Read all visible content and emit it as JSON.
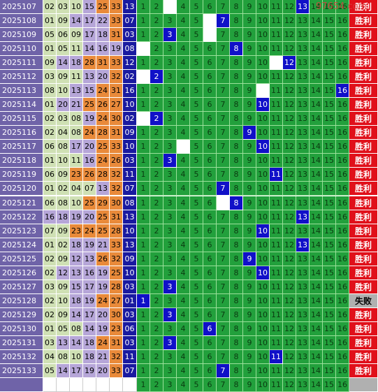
{
  "watermark": "97654.com",
  "grid_numbers": [
    "1",
    "2",
    "3",
    "4",
    "5",
    "6",
    "7",
    "8",
    "9",
    "10",
    "11",
    "12",
    "13",
    "14",
    "15",
    "16"
  ],
  "rows": [
    {
      "issue": "2025107",
      "reds": [
        "02",
        "03",
        "10",
        "15",
        "25",
        "33"
      ],
      "blue": "13",
      "kill": 3,
      "result": "胜利"
    },
    {
      "issue": "2025108",
      "reds": [
        "01",
        "09",
        "14",
        "17",
        "22",
        "33"
      ],
      "blue": "07",
      "kill": 6,
      "result": "胜利"
    },
    {
      "issue": "2025109",
      "reds": [
        "05",
        "06",
        "09",
        "17",
        "18",
        "31"
      ],
      "blue": "03",
      "kill": 6,
      "result": "胜利"
    },
    {
      "issue": "2025110",
      "reds": [
        "01",
        "05",
        "11",
        "14",
        "16",
        "19"
      ],
      "blue": "08",
      "kill": 1,
      "result": "胜利"
    },
    {
      "issue": "2025111",
      "reds": [
        "09",
        "14",
        "18",
        "28",
        "31",
        "33"
      ],
      "blue": "12",
      "kill": 11,
      "result": "胜利"
    },
    {
      "issue": "2025112",
      "reds": [
        "03",
        "09",
        "11",
        "13",
        "20",
        "32"
      ],
      "blue": "02",
      "kill": 1,
      "result": "胜利"
    },
    {
      "issue": "2025113",
      "reds": [
        "08",
        "10",
        "13",
        "15",
        "24",
        "31"
      ],
      "blue": "16",
      "kill": 10,
      "result": "胜利"
    },
    {
      "issue": "2025114",
      "reds": [
        "01",
        "20",
        "21",
        "25",
        "26",
        "27"
      ],
      "blue": "10",
      "kill": null,
      "result": "胜利"
    },
    {
      "issue": "2025115",
      "reds": [
        "02",
        "03",
        "08",
        "19",
        "24",
        "30"
      ],
      "blue": "02",
      "kill": 1,
      "result": "胜利"
    },
    {
      "issue": "2025116",
      "reds": [
        "02",
        "04",
        "08",
        "24",
        "28",
        "31"
      ],
      "blue": "09",
      "kill": null,
      "result": "胜利"
    },
    {
      "issue": "2025117",
      "reds": [
        "06",
        "08",
        "17",
        "20",
        "25",
        "33"
      ],
      "blue": "10",
      "kill": 4,
      "result": "胜利"
    },
    {
      "issue": "2025118",
      "reds": [
        "01",
        "10",
        "11",
        "16",
        "24",
        "26"
      ],
      "blue": "03",
      "kill": null,
      "result": "胜利"
    },
    {
      "issue": "2025119",
      "reds": [
        "06",
        "09",
        "23",
        "26",
        "28",
        "32"
      ],
      "blue": "11",
      "kill": null,
      "result": "胜利"
    },
    {
      "issue": "2025120",
      "reds": [
        "01",
        "02",
        "04",
        "07",
        "13",
        "32"
      ],
      "blue": "07",
      "kill": null,
      "result": "胜利"
    },
    {
      "issue": "2025121",
      "reds": [
        "06",
        "08",
        "10",
        "25",
        "29",
        "30"
      ],
      "blue": "08",
      "kill": 7,
      "result": "胜利"
    },
    {
      "issue": "2025122",
      "reds": [
        "16",
        "18",
        "19",
        "20",
        "25",
        "31"
      ],
      "blue": "13",
      "kill": null,
      "result": "胜利"
    },
    {
      "issue": "2025123",
      "reds": [
        "07",
        "09",
        "23",
        "24",
        "25",
        "28"
      ],
      "blue": "10",
      "kill": null,
      "result": "胜利"
    },
    {
      "issue": "2025124",
      "reds": [
        "01",
        "02",
        "18",
        "19",
        "21",
        "33"
      ],
      "blue": "13",
      "kill": null,
      "result": "胜利"
    },
    {
      "issue": "2025125",
      "reds": [
        "02",
        "09",
        "12",
        "13",
        "26",
        "32"
      ],
      "blue": "09",
      "kill": null,
      "result": "胜利"
    },
    {
      "issue": "2025126",
      "reds": [
        "02",
        "12",
        "13",
        "16",
        "19",
        "25"
      ],
      "blue": "10",
      "kill": null,
      "result": "胜利"
    },
    {
      "issue": "2025127",
      "reds": [
        "03",
        "09",
        "15",
        "17",
        "19",
        "28"
      ],
      "blue": "03",
      "kill": null,
      "result": "胜利"
    },
    {
      "issue": "2025128",
      "reds": [
        "02",
        "10",
        "18",
        "19",
        "24",
        "27"
      ],
      "blue": "01",
      "kill": null,
      "result": "失败"
    },
    {
      "issue": "2025129",
      "reds": [
        "02",
        "09",
        "14",
        "17",
        "20",
        "30"
      ],
      "blue": "03",
      "kill": null,
      "result": "胜利"
    },
    {
      "issue": "2025130",
      "reds": [
        "01",
        "05",
        "08",
        "14",
        "19",
        "23"
      ],
      "blue": "06",
      "kill": null,
      "result": "胜利"
    },
    {
      "issue": "2025131",
      "reds": [
        "03",
        "13",
        "14",
        "18",
        "24",
        "31"
      ],
      "blue": "03",
      "kill": null,
      "result": "胜利"
    },
    {
      "issue": "2025132",
      "reds": [
        "04",
        "08",
        "10",
        "18",
        "21",
        "32"
      ],
      "blue": "11",
      "kill": null,
      "result": "胜利"
    },
    {
      "issue": "2025133",
      "reds": [
        "05",
        "14",
        "17",
        "19",
        "20",
        "33"
      ],
      "blue": "07",
      "kill": null,
      "result": "胜利"
    }
  ]
}
